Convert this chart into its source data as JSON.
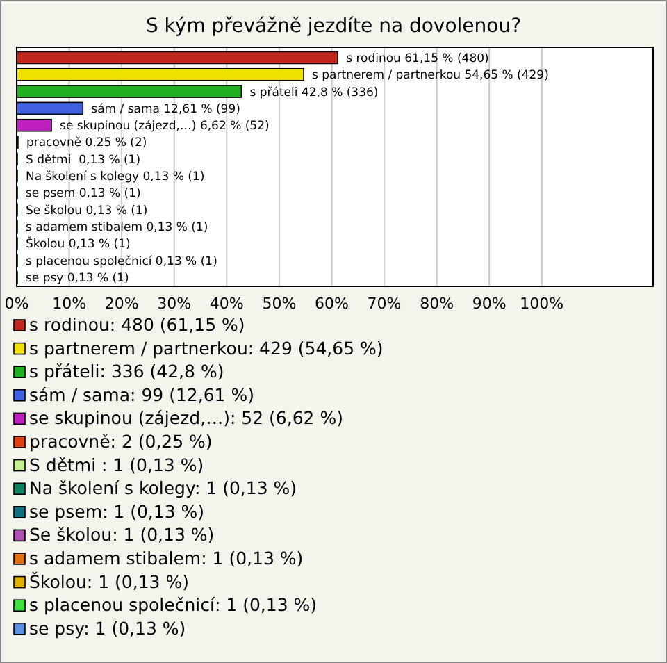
{
  "chart_data": {
    "type": "bar",
    "orientation": "horizontal",
    "title": "S kým převážně jezdíte na dovolenou?",
    "categories": [
      null,
      null,
      null,
      null,
      null,
      null,
      null,
      null,
      null,
      null,
      null,
      null,
      null,
      null
    ],
    "values": [
      61.15,
      54.65,
      42.8,
      12.61,
      6.62,
      0.25,
      0.13,
      0.13,
      0.13,
      0.13,
      0.13,
      0.13,
      0.13,
      0.13
    ],
    "value_labels": [
      "s rodinou 61,15 % (480)",
      "s partnerem / partnerkou 54,65 % (429)",
      "s přáteli 42,8 % (336)",
      "sám / sama 12,61 % (99)",
      "se skupinou (zájezd,…) 6,62 % (52)",
      "pracovně 0,25 % (2)",
      "S dětmi  0,13 % (1)",
      "Na školení s kolegy 0,13 % (1)",
      "se psem 0,13 % (1)",
      "Se školou 0,13 % (1)",
      "s adamem stibalem 0,13 % (1)",
      "Školou 0,13 % (1)",
      "s placenou společnicí 0,13 % (1)",
      "se psy 0,13 % (1)"
    ],
    "colors": [
      "#c0281c",
      "#f0e000",
      "#20b020",
      "#4060e0",
      "#c020c0",
      "#e04010",
      "#c8f090",
      "#108060",
      "#107080",
      "#b050b0",
      "#e07010",
      "#e0b000",
      "#40e040",
      "#6090e0"
    ],
    "annotations": [
      "s rodinou: 480 (61,15 %)",
      "s partnerem / partnerkou: 429 (54,65 %)",
      "s přáteli: 336 (42,8 %)",
      "sám / sama: 99 (12,61 %)",
      "se skupinou (zájezd,…): 52 (6,62 %)",
      "pracovně: 2 (0,25 %)",
      "S dětmi : 1 (0,13 %)",
      "Na školení s kolegy: 1 (0,13 %)",
      "se psem: 1 (0,13 %)",
      "Se školou: 1 (0,13 %)",
      "s adamem stibalem: 1 (0,13 %)",
      "Školou: 1 (0,13 %)",
      "s placenou společnicí: 1 (0,13 %)",
      "se psy: 1 (0,13 %)"
    ],
    "xlim": [
      0,
      121.2
    ],
    "xticks": [
      {
        "value": 0,
        "label": "0%"
      },
      {
        "value": 10,
        "label": "10%"
      },
      {
        "value": 20,
        "label": "20%"
      },
      {
        "value": 30,
        "label": "30%"
      },
      {
        "value": 40,
        "label": "40%"
      },
      {
        "value": 50,
        "label": "50%"
      },
      {
        "value": 60,
        "label": "60%"
      },
      {
        "value": 70,
        "label": "70%"
      },
      {
        "value": 80,
        "label": "80%"
      },
      {
        "value": 90,
        "label": "90%"
      },
      {
        "value": 100,
        "label": "100%"
      }
    ],
    "grid": "x",
    "tick_labels": "x"
  }
}
